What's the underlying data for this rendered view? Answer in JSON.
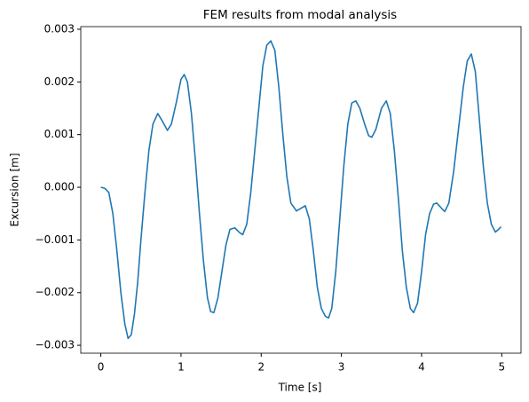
{
  "chart_data": {
    "type": "line",
    "title": "FEM results from modal analysis",
    "x_label": "Time [s]",
    "y_label": "Excursion [m]",
    "x": [
      0,
      0.05,
      0.1,
      0.15,
      0.2,
      0.25,
      0.3,
      0.34,
      0.38,
      0.42,
      0.46,
      0.5,
      0.55,
      0.6,
      0.65,
      0.71,
      0.77,
      0.83,
      0.88,
      0.94,
      1.0,
      1.04,
      1.08,
      1.13,
      1.18,
      1.23,
      1.28,
      1.33,
      1.37,
      1.41,
      1.46,
      1.51,
      1.56,
      1.61,
      1.67,
      1.73,
      1.77,
      1.82,
      1.87,
      1.92,
      1.97,
      2.02,
      2.07,
      2.12,
      2.17,
      2.22,
      2.27,
      2.32,
      2.37,
      2.44,
      2.55,
      2.6,
      2.65,
      2.7,
      2.75,
      2.8,
      2.84,
      2.88,
      2.93,
      2.98,
      3.03,
      3.08,
      3.13,
      3.18,
      3.23,
      3.29,
      3.34,
      3.38,
      3.43,
      3.5,
      3.56,
      3.61,
      3.66,
      3.71,
      3.76,
      3.81,
      3.86,
      3.9,
      3.95,
      4.0,
      4.05,
      4.1,
      4.15,
      4.19,
      4.25,
      4.29,
      4.34,
      4.4,
      4.46,
      4.52,
      4.57,
      4.62,
      4.67,
      4.72,
      4.77,
      4.82,
      4.87,
      4.92,
      4.96,
      4.99
    ],
    "series": [
      {
        "color": "#1f77b4",
        "values": [
          0,
          -2e-05,
          -0.0001,
          -0.0005,
          -0.0012,
          -0.002,
          -0.0026,
          -0.00287,
          -0.0028,
          -0.0024,
          -0.0018,
          -0.001,
          -0.0001,
          0.0007,
          0.0012,
          0.0014,
          0.00125,
          0.00108,
          0.0012,
          0.0016,
          0.00205,
          0.00214,
          0.002,
          0.0014,
          0.0005,
          -0.0005,
          -0.0014,
          -0.0021,
          -0.00236,
          -0.00238,
          -0.0021,
          -0.0016,
          -0.0011,
          -0.0008,
          -0.00077,
          -0.00086,
          -0.0009,
          -0.0007,
          -0.0001,
          0.0007,
          0.0015,
          0.0023,
          0.0027,
          0.00278,
          0.0026,
          0.0019,
          0.001,
          0.0002,
          -0.0003,
          -0.00045,
          -0.00035,
          -0.0006,
          -0.0012,
          -0.0019,
          -0.0023,
          -0.00245,
          -0.00248,
          -0.0023,
          -0.0016,
          -0.0006,
          0.0004,
          0.0012,
          0.0016,
          0.00164,
          0.0015,
          0.0012,
          0.00098,
          0.00095,
          0.0011,
          0.0015,
          0.00164,
          0.0014,
          0.0007,
          -0.0002,
          -0.0012,
          -0.0019,
          -0.0023,
          -0.00238,
          -0.0022,
          -0.0016,
          -0.0009,
          -0.0005,
          -0.00032,
          -0.0003,
          -0.0004,
          -0.00046,
          -0.0003,
          0.0003,
          0.0011,
          0.0019,
          0.0024,
          0.00253,
          0.0022,
          0.0013,
          0.0004,
          -0.0003,
          -0.0007,
          -0.00085,
          -0.0008,
          -0.00075
        ]
      }
    ],
    "xlim": [
      -0.25,
      5.24
    ],
    "xticks": [
      0,
      1,
      2,
      3,
      4,
      5
    ],
    "ylim": [
      -0.00315,
      0.00305
    ],
    "yticks": [
      {
        "value": -0.003,
        "label": "−0.003"
      },
      {
        "value": -0.002,
        "label": "−0.002"
      },
      {
        "value": -0.001,
        "label": "−0.001"
      },
      {
        "value": 0,
        "label": "0.000"
      },
      0.001,
      0.002,
      0.003
    ],
    "grid": false
  }
}
